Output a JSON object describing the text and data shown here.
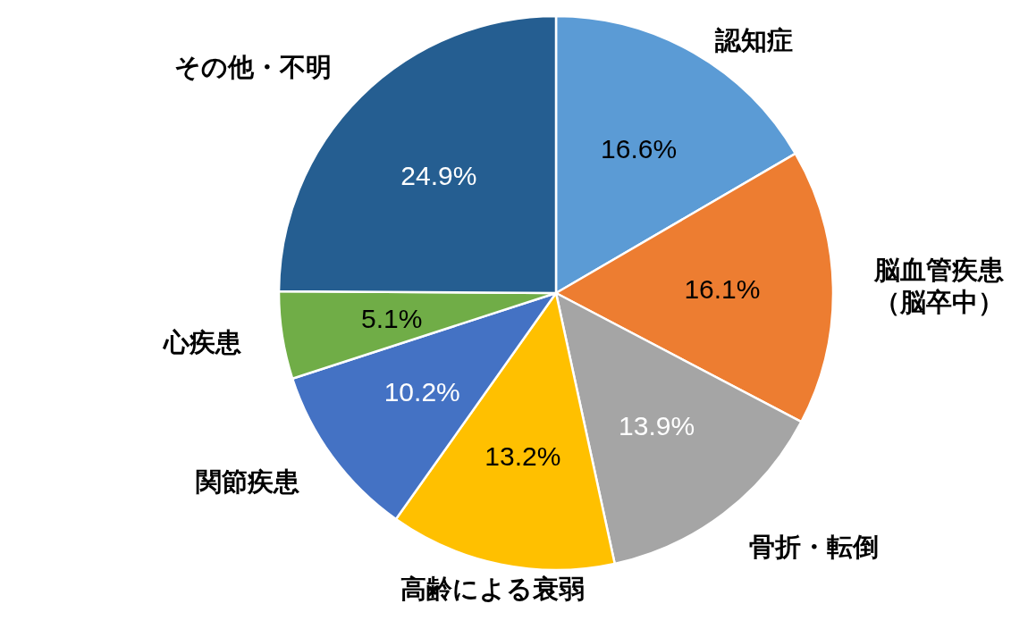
{
  "chart_data": {
    "type": "pie",
    "categories": [
      "認知症",
      "脳血管疾患（脳卒中）",
      "骨折・転倒",
      "高齢による衰弱",
      "関節疾患",
      "心疾患",
      "その他・不明"
    ],
    "values": [
      16.6,
      16.1,
      13.9,
      13.2,
      10.2,
      5.1,
      24.9
    ],
    "colors": [
      "#5b9bd5",
      "#ed7d31",
      "#a5a5a5",
      "#ffc000",
      "#4472c4",
      "#70ad47",
      "#255e91"
    ],
    "value_labels": [
      "16.6%",
      "16.1%",
      "13.9%",
      "13.2%",
      "10.2%",
      "5.1%",
      "24.9%"
    ],
    "legend": false
  }
}
